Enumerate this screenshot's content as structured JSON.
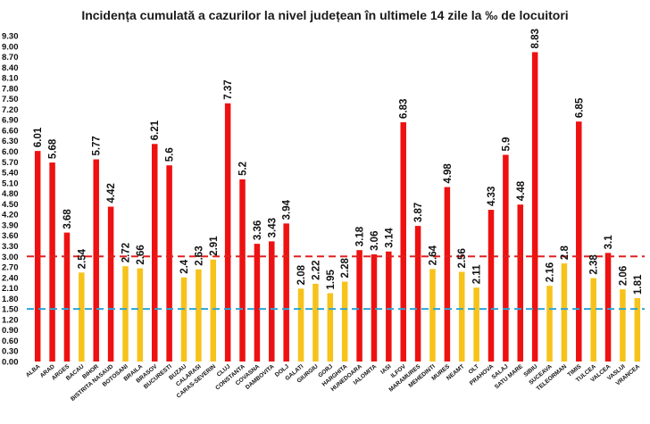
{
  "chart_data": {
    "type": "bar",
    "title": "Incidența cumulată a cazurilor la nivel județean în ultimele 14 zile la ‰ de locuitori",
    "xlabel": "",
    "ylabel": "",
    "ylim": [
      0,
      9.3
    ],
    "yticks": [
      "0.00",
      "0.30",
      "0.60",
      "0.90",
      "1.20",
      "1.50",
      "1.80",
      "2.10",
      "2.40",
      "2.70",
      "3.00",
      "3.30",
      "3.60",
      "3.90",
      "4.20",
      "4.50",
      "4.80",
      "5.10",
      "5.40",
      "5.70",
      "6.00",
      "6.30",
      "6.60",
      "6.90",
      "7.20",
      "7.50",
      "7.80",
      "8.10",
      "8.40",
      "8.70",
      "9.00",
      "9.30"
    ],
    "categories": [
      "ALBA",
      "ARAD",
      "ARGES",
      "BACAU",
      "BIHOR",
      "BISTRITA NASAUD",
      "BOTOSANI",
      "BRAILA",
      "BRASOV",
      "BUCURESTI",
      "BUZAU",
      "CALARASI",
      "CARAS-SEVERIN",
      "CLUJ",
      "CONSTANTA",
      "COVASNA",
      "DAMBOVITA",
      "DOLJ",
      "GALATI",
      "GIURGIU",
      "GORJ",
      "HARGHITA",
      "HUNEDOARA",
      "IALOMITA",
      "IASI",
      "ILFOV",
      "MARAMURES",
      "MEHEDINTI",
      "MURES",
      "NEAMT",
      "OLT",
      "PRAHOVA",
      "SALAJ",
      "SATU MARE",
      "SIBIU",
      "SUCEAVA",
      "TELEORMAN",
      "TIMIS",
      "TULCEA",
      "VALCEA",
      "VASLUI",
      "VRANCEA"
    ],
    "values": [
      6.01,
      5.68,
      3.68,
      2.54,
      5.77,
      4.42,
      2.72,
      2.66,
      6.21,
      5.6,
      2.4,
      2.63,
      2.91,
      7.37,
      5.2,
      3.36,
      3.43,
      3.94,
      2.08,
      2.22,
      1.95,
      2.28,
      3.18,
      3.06,
      3.14,
      6.83,
      3.87,
      2.64,
      4.98,
      2.56,
      2.11,
      4.33,
      5.9,
      4.48,
      8.83,
      2.16,
      2.8,
      6.85,
      2.38,
      3.1,
      2.06,
      1.81
    ],
    "data_labels": [
      "6.01",
      "5.68",
      "3.68",
      "2.54",
      "5.77",
      "4.42",
      "2.72",
      "2.66",
      "6.21",
      "5.6",
      "2.4",
      "2.63",
      "2.91",
      "7.37",
      "5.2",
      "3.36",
      "3.43",
      "3.94",
      "2.08",
      "2.22",
      "1.95",
      "2.28",
      "3.18",
      "3.06",
      "3.14",
      "6.83",
      "3.87",
      "2.64",
      "4.98",
      "2.56",
      "2.11",
      "4.33",
      "5.9",
      "4.48",
      "8.83",
      "2.16",
      "2.8",
      "6.85",
      "2.38",
      "3.1",
      "2.06",
      "1.81"
    ],
    "thresholds": [
      {
        "value": 3.0,
        "color": "#e02020",
        "style": "dashed"
      },
      {
        "value": 1.5,
        "color": "#2aa6d8",
        "style": "dashed"
      }
    ],
    "colors": {
      "above_threshold": "#ee1111",
      "below_threshold": "#f7c21a"
    },
    "grid": false,
    "legend": "none"
  }
}
